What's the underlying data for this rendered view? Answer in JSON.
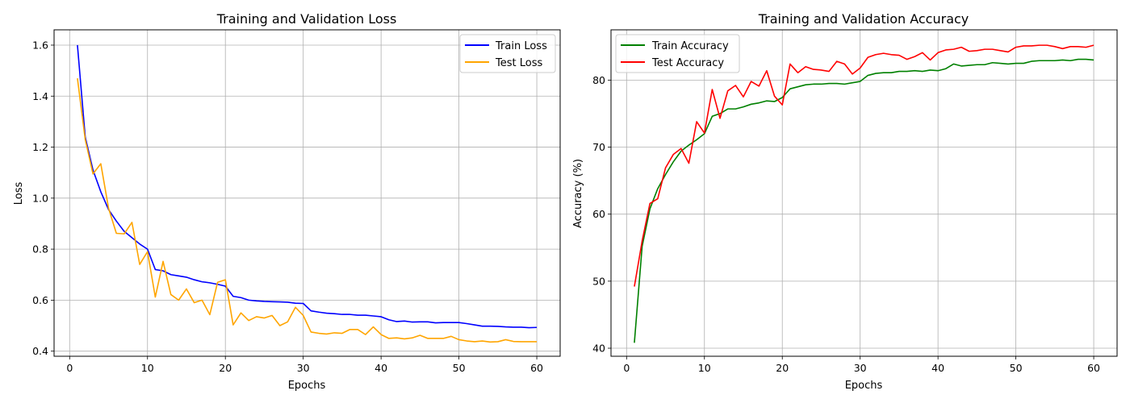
{
  "chart_data": [
    {
      "type": "line",
      "title": "Training and Validation Loss",
      "xlabel": "Epochs",
      "ylabel": "Loss",
      "xlim": [
        -2,
        63
      ],
      "ylim": [
        0.38,
        1.66
      ],
      "xticks": [
        0,
        10,
        20,
        30,
        40,
        50,
        60
      ],
      "yticks": [
        0.4,
        0.6,
        0.8,
        1.0,
        1.2,
        1.4,
        1.6
      ],
      "ytick_labels": [
        "0.4",
        "0.6",
        "0.8",
        "1.0",
        "1.2",
        "1.4",
        "1.6"
      ],
      "grid": true,
      "legend_position": "top-right",
      "x": [
        1,
        2,
        3,
        4,
        5,
        6,
        7,
        8,
        9,
        10,
        11,
        12,
        13,
        14,
        15,
        16,
        17,
        18,
        19,
        20,
        21,
        22,
        23,
        24,
        25,
        26,
        27,
        28,
        29,
        30,
        31,
        32,
        33,
        34,
        35,
        36,
        37,
        38,
        39,
        40,
        41,
        42,
        43,
        44,
        45,
        46,
        47,
        48,
        49,
        50,
        51,
        52,
        53,
        54,
        55,
        56,
        57,
        58,
        59,
        60
      ],
      "series": [
        {
          "name": "Train Loss",
          "color": "#0000ff",
          "values": [
            1.6,
            1.24,
            1.11,
            1.025,
            0.955,
            0.91,
            0.87,
            0.845,
            0.82,
            0.8,
            0.72,
            0.715,
            0.7,
            0.695,
            0.69,
            0.68,
            0.672,
            0.668,
            0.662,
            0.655,
            0.615,
            0.61,
            0.6,
            0.597,
            0.595,
            0.594,
            0.593,
            0.592,
            0.588,
            0.587,
            0.558,
            0.553,
            0.549,
            0.547,
            0.544,
            0.544,
            0.541,
            0.541,
            0.538,
            0.535,
            0.523,
            0.516,
            0.518,
            0.514,
            0.515,
            0.515,
            0.511,
            0.512,
            0.512,
            0.512,
            0.508,
            0.503,
            0.498,
            0.498,
            0.497,
            0.495,
            0.494,
            0.494,
            0.492,
            0.493
          ]
        },
        {
          "name": "Test Loss",
          "color": "#ffa500",
          "values": [
            1.47,
            1.23,
            1.095,
            1.135,
            0.96,
            0.862,
            0.86,
            0.905,
            0.74,
            0.79,
            0.612,
            0.752,
            0.622,
            0.6,
            0.644,
            0.59,
            0.6,
            0.543,
            0.67,
            0.68,
            0.503,
            0.55,
            0.52,
            0.535,
            0.53,
            0.54,
            0.5,
            0.515,
            0.572,
            0.54,
            0.475,
            0.47,
            0.467,
            0.472,
            0.47,
            0.485,
            0.485,
            0.465,
            0.495,
            0.465,
            0.45,
            0.452,
            0.448,
            0.452,
            0.462,
            0.45,
            0.45,
            0.45,
            0.458,
            0.445,
            0.44,
            0.437,
            0.44,
            0.436,
            0.437,
            0.445,
            0.438,
            0.437,
            0.437,
            0.437
          ]
        }
      ]
    },
    {
      "type": "line",
      "title": "Training and Validation Accuracy",
      "xlabel": "Epochs",
      "ylabel": "Accuracy (%)",
      "xlim": [
        -2,
        63
      ],
      "ylim": [
        38.8,
        87.5
      ],
      "xticks": [
        0,
        10,
        20,
        30,
        40,
        50,
        60
      ],
      "yticks": [
        40,
        50,
        60,
        70,
        80
      ],
      "ytick_labels": [
        "40",
        "50",
        "60",
        "70",
        "80"
      ],
      "grid": true,
      "legend_position": "top-left",
      "x": [
        1,
        2,
        3,
        4,
        5,
        6,
        7,
        8,
        9,
        10,
        11,
        12,
        13,
        14,
        15,
        16,
        17,
        18,
        19,
        20,
        21,
        22,
        23,
        24,
        25,
        26,
        27,
        28,
        29,
        30,
        31,
        32,
        33,
        34,
        35,
        36,
        37,
        38,
        39,
        40,
        41,
        42,
        43,
        44,
        45,
        46,
        47,
        48,
        49,
        50,
        51,
        52,
        53,
        54,
        55,
        56,
        57,
        58,
        59,
        60
      ],
      "series": [
        {
          "name": "Train Accuracy",
          "color": "#008000",
          "values": [
            40.8,
            55.2,
            60.8,
            63.8,
            65.9,
            67.8,
            69.4,
            70.3,
            71.1,
            72.0,
            74.6,
            75.0,
            75.7,
            75.7,
            76.0,
            76.4,
            76.6,
            76.9,
            76.8,
            77.4,
            78.7,
            79.0,
            79.3,
            79.4,
            79.4,
            79.5,
            79.5,
            79.4,
            79.6,
            79.8,
            80.7,
            81.0,
            81.1,
            81.1,
            81.3,
            81.3,
            81.4,
            81.3,
            81.5,
            81.4,
            81.7,
            82.4,
            82.1,
            82.2,
            82.3,
            82.3,
            82.6,
            82.5,
            82.4,
            82.5,
            82.5,
            82.8,
            82.9,
            82.9,
            82.9,
            83.0,
            82.9,
            83.1,
            83.1,
            83.0
          ]
        },
        {
          "name": "Test Accuracy",
          "color": "#ff0000",
          "values": [
            49.2,
            56.0,
            61.6,
            62.3,
            66.9,
            68.9,
            69.8,
            67.6,
            73.8,
            72.1,
            78.6,
            74.3,
            78.4,
            79.2,
            77.5,
            79.8,
            79.1,
            81.4,
            77.6,
            76.3,
            82.4,
            81.1,
            82.0,
            81.6,
            81.5,
            81.3,
            82.8,
            82.4,
            80.9,
            81.8,
            83.4,
            83.8,
            84.0,
            83.8,
            83.7,
            83.1,
            83.5,
            84.1,
            83.0,
            84.1,
            84.5,
            84.6,
            84.9,
            84.3,
            84.4,
            84.6,
            84.6,
            84.4,
            84.2,
            84.9,
            85.1,
            85.1,
            85.2,
            85.2,
            85.0,
            84.7,
            85.0,
            85.0,
            84.9,
            85.2
          ]
        }
      ]
    }
  ]
}
